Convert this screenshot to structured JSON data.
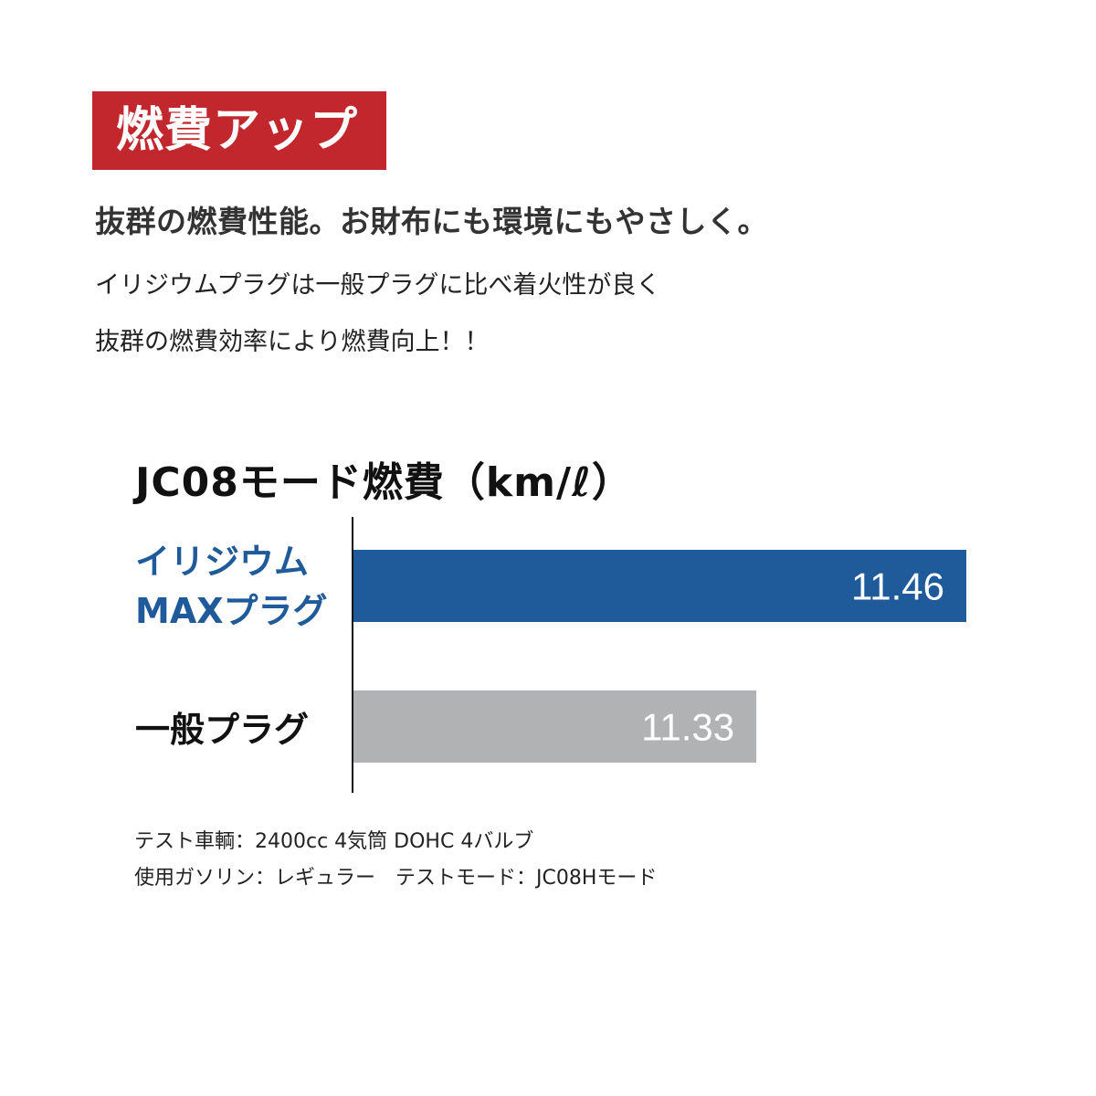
{
  "badge": {
    "label": "燃費アップ",
    "color": "#c1272d"
  },
  "headline": "抜群の燃費性能。お財布にも環境にもやさしく。",
  "body_lines": [
    "イリジウムプラグは一般プラグに比べ着火性が良く",
    "抜群の燃費効率により燃費向上！！"
  ],
  "chart_data": {
    "type": "bar",
    "orientation": "horizontal",
    "title": "JC08モード燃費（km/ℓ）",
    "categories": [
      "イリジウム MAXプラグ",
      "一般プラグ"
    ],
    "category_lines": [
      [
        "イリジウム",
        "MAXプラグ"
      ],
      [
        "一般プラグ"
      ]
    ],
    "values": [
      11.46,
      11.33
    ],
    "data_labels": [
      "11.46",
      "11.33"
    ],
    "colors": [
      "#1f5a9a",
      "#b1b2b4"
    ],
    "label_colors": [
      "#1f5a9a",
      "#111111"
    ],
    "xlim": [
      11.08,
      11.46
    ],
    "grid": false
  },
  "notes": [
    "テスト車輌：2400cc 4気筒 DOHC 4バルブ",
    "使用ガソリン：レギュラー　テストモード：JC08Hモード"
  ]
}
